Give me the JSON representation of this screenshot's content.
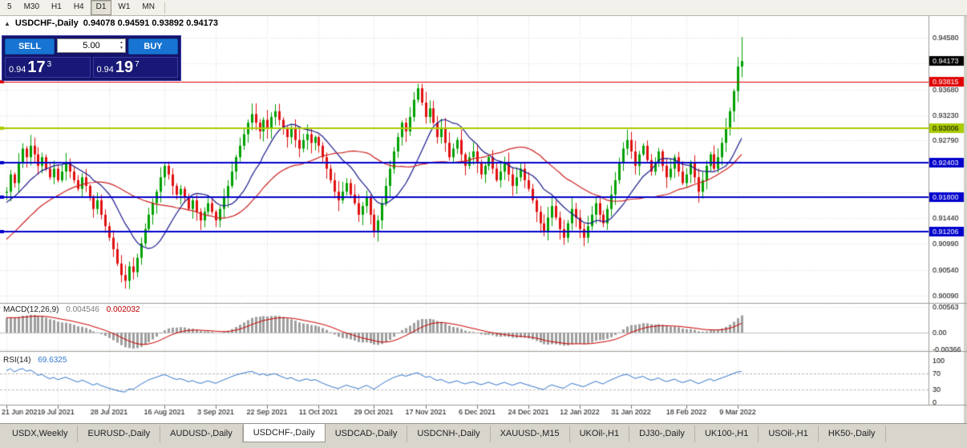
{
  "toolbar": {
    "timeframes": [
      "5",
      "M30",
      "H1",
      "H4",
      "D1",
      "W1",
      "MN"
    ],
    "active": "D1"
  },
  "title": {
    "collapse_icon": "▲",
    "symbol": "USDCHF-,Daily",
    "ohlc": "0.94078 0.94591 0.93892 0.94173"
  },
  "trade_panel": {
    "sell_label": "SELL",
    "buy_label": "BUY",
    "volume": "5.00",
    "up_arrow": "▲",
    "down_arrow": "▼",
    "sell_price": {
      "small": "0.94",
      "big": "17",
      "sup": "3"
    },
    "buy_price": {
      "small": "0.94",
      "big": "19",
      "sup": "7"
    }
  },
  "tabs": {
    "active_index": 3,
    "items": [
      "USDX,Weekly",
      "EURUSD-,Daily",
      "AUDUSD-,Daily",
      "USDCHF-,Daily",
      "USDCAD-,Daily",
      "USDCNH-,Daily",
      "XAUUSD-,M15",
      "UKOil-,H1",
      "DJ30-,Daily",
      "UK100-,H1",
      "USOil-,H1",
      "HK50-,Daily"
    ],
    "note": ""
  },
  "chart_data": {
    "type": "candlestick",
    "symbol": "USDCHF-",
    "timeframe": "Daily",
    "price_scale": {
      "top": 0.9458,
      "bottom": 0.9009
    },
    "grid_prices": [
      0.9458,
      0.9413,
      0.9368,
      0.9323,
      0.9279,
      0.9234,
      0.9189,
      0.9144,
      0.9099,
      0.9054,
      0.9009
    ],
    "price_labels": [
      "0.94580",
      "0.93680",
      "0.93230",
      "0.92790",
      "0.91440",
      "0.90990",
      "0.90540",
      "0.90090"
    ],
    "hlines": [
      {
        "price": 0.94173,
        "label": "0.94173",
        "color": "#000000",
        "text_color": "#ffffff",
        "width": 0,
        "draw_line": false
      },
      {
        "price": 0.93815,
        "label": "0.93815",
        "color": "#e00000",
        "text_color": "#ffffff",
        "width": 1,
        "draw_line": true
      },
      {
        "price": 0.93006,
        "label": "0.93006",
        "color": "#aacc00",
        "text_color": "#000000",
        "width": 2,
        "draw_line": true
      },
      {
        "price": 0.92403,
        "label": "0.92403",
        "color": "#0000cc",
        "text_color": "#ffffff",
        "width": 2,
        "draw_line": true
      },
      {
        "price": 0.918,
        "label": "0.91800",
        "color": "#0000cc",
        "text_color": "#ffffff",
        "width": 2,
        "draw_line": true
      },
      {
        "price": 0.91206,
        "label": "0.91206",
        "color": "#0000cc",
        "text_color": "#ffffff",
        "width": 2,
        "draw_line": true
      }
    ],
    "date_labels": [
      "21 Jun 2021",
      "9 Jul 2021",
      "28 Jul 2021",
      "16 Aug 2021",
      "3 Sep 2021",
      "22 Sep 2021",
      "11 Oct 2021",
      "29 Oct 2021",
      "17 Nov 2021",
      "6 Dec 2021",
      "24 Dec 2021",
      "12 Jan 2022",
      "31 Jan 2022",
      "18 Feb 2022",
      "9 Mar 2022"
    ],
    "date_tick_indices": [
      0,
      13,
      26,
      40,
      53,
      66,
      79,
      93,
      106,
      119,
      132,
      145,
      158,
      172,
      185
    ],
    "pre_closes": [
      0.898,
      0.8995,
      0.8988,
      0.9005,
      0.902,
      0.9012,
      0.903,
      0.9045,
      0.9038,
      0.9055,
      0.907,
      0.906,
      0.9078,
      0.9092,
      0.9085,
      0.91,
      0.9115,
      0.9105,
      0.912,
      0.9135,
      0.9125,
      0.914,
      0.915,
      0.9142,
      0.9155,
      0.9165,
      0.9158,
      0.917,
      0.918,
      0.9172,
      0.9182,
      0.919,
      0.9185,
      0.9188
    ],
    "closes": [
      0.919,
      0.922,
      0.9205,
      0.924,
      0.9265,
      0.925,
      0.927,
      0.9255,
      0.9235,
      0.925,
      0.923,
      0.9215,
      0.923,
      0.921,
      0.9225,
      0.924,
      0.9225,
      0.921,
      0.9195,
      0.9215,
      0.92,
      0.918,
      0.916,
      0.9175,
      0.915,
      0.913,
      0.911,
      0.909,
      0.9065,
      0.9045,
      0.9035,
      0.906,
      0.905,
      0.9075,
      0.91,
      0.9125,
      0.915,
      0.917,
      0.919,
      0.9215,
      0.9235,
      0.922,
      0.92,
      0.9185,
      0.9195,
      0.918,
      0.916,
      0.9175,
      0.9155,
      0.914,
      0.9155,
      0.917,
      0.9155,
      0.914,
      0.916,
      0.918,
      0.92,
      0.9225,
      0.925,
      0.927,
      0.929,
      0.931,
      0.9325,
      0.931,
      0.9295,
      0.9315,
      0.93,
      0.932,
      0.933,
      0.9315,
      0.93,
      0.9285,
      0.93,
      0.928,
      0.9265,
      0.928,
      0.929,
      0.9275,
      0.9285,
      0.927,
      0.925,
      0.923,
      0.921,
      0.919,
      0.9175,
      0.919,
      0.9205,
      0.9185,
      0.917,
      0.915,
      0.9165,
      0.918,
      0.915,
      0.912,
      0.914,
      0.917,
      0.92,
      0.923,
      0.926,
      0.9285,
      0.931,
      0.9295,
      0.932,
      0.935,
      0.937,
      0.9345,
      0.932,
      0.9335,
      0.931,
      0.9285,
      0.93,
      0.9275,
      0.925,
      0.9265,
      0.928,
      0.9255,
      0.9235,
      0.925,
      0.926,
      0.924,
      0.922,
      0.9235,
      0.925,
      0.923,
      0.921,
      0.9225,
      0.924,
      0.922,
      0.92,
      0.9215,
      0.923,
      0.921,
      0.9195,
      0.9175,
      0.9155,
      0.9135,
      0.912,
      0.9145,
      0.9165,
      0.9145,
      0.9125,
      0.911,
      0.9135,
      0.916,
      0.9145,
      0.9125,
      0.911,
      0.913,
      0.915,
      0.917,
      0.915,
      0.9135,
      0.916,
      0.9185,
      0.921,
      0.924,
      0.9265,
      0.928,
      0.926,
      0.9235,
      0.9255,
      0.927,
      0.9245,
      0.9225,
      0.924,
      0.926,
      0.9235,
      0.9215,
      0.923,
      0.925,
      0.9225,
      0.9205,
      0.922,
      0.924,
      0.9215,
      0.919,
      0.921,
      0.9235,
      0.9255,
      0.923,
      0.925,
      0.9275,
      0.93,
      0.933,
      0.9365,
      0.94078,
      0.94173
    ],
    "last_candle": {
      "o": 0.94078,
      "h": 0.94591,
      "l": 0.93892,
      "c": 0.94173
    },
    "ma": [
      {
        "period": 13,
        "color": "#1a1a8c"
      },
      {
        "period": 34,
        "color": "#cc2222"
      }
    ],
    "macd": {
      "label": "MACD(12,26,9)",
      "value_main": "0.004546",
      "value_signal": "0.002032",
      "fast": 12,
      "slow": 26,
      "signal": 9,
      "axis_labels": [
        "0.00563",
        "0.00",
        "-0.00366"
      ],
      "axis_values": [
        0.00563,
        0,
        -0.00366
      ],
      "hist_color": "#9e9e9e",
      "signal_color": "#cc0000"
    },
    "rsi": {
      "label": "RSI(14)",
      "value": "69.6325",
      "period": 14,
      "axis_labels": [
        "100",
        "70",
        "30",
        "0"
      ],
      "axis_values": [
        100,
        70,
        30,
        0
      ],
      "levels": [
        70,
        30
      ],
      "color": "#3377cc"
    },
    "colors": {
      "up": "#00a000",
      "down": "#e01010",
      "grid": "#d8d8d8",
      "separator": "#9e9c94",
      "axis_text": "#000000",
      "strip": "#d4d1c8"
    }
  }
}
